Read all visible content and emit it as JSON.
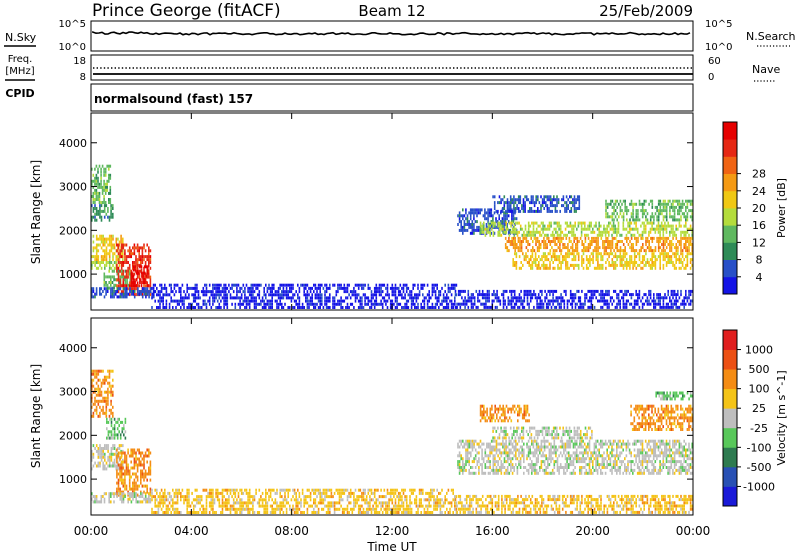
{
  "header": {
    "station": "Prince George (fitACF)",
    "beam": "Beam 12",
    "date": "25/Feb/2009"
  },
  "nsky_panel": {
    "left_label": "N.Sky",
    "left_ticks": [
      "10^5",
      "10^0"
    ],
    "right_label": "N.Search",
    "right_ticks": [
      "10^5",
      "10^0"
    ]
  },
  "freq_panel": {
    "label_line1": "Freq.",
    "label_line2": "[MHz]",
    "left_ticks": [
      "18",
      "8"
    ],
    "right_ticks": [
      "60",
      "0"
    ],
    "right_label": "Nave",
    "cpid_label": "CPID",
    "cpid_text": "normalsound (fast) 157"
  },
  "colors": {
    "power": [
      "#1414e6",
      "#2850c8",
      "#2e8b57",
      "#5fb85f",
      "#b4dc3c",
      "#f0c814",
      "#f59a14",
      "#f06414",
      "#e62814",
      "#e60000"
    ],
    "velocity": [
      "#1a1ad8",
      "#2850b4",
      "#2e7b50",
      "#58c85a",
      "#bebebe",
      "#f4c418",
      "#f48c14",
      "#ec5014",
      "#e01e1e"
    ],
    "ground_scatter": "#b4b4b4"
  },
  "chart_data": [
    {
      "type": "heatmap",
      "title": "",
      "xlabel": "Time UT",
      "ylabel": "Slant Range [km]",
      "x_ticks": [
        "00:00",
        "04:00",
        "08:00",
        "12:00",
        "16:00",
        "20:00",
        "00:00"
      ],
      "y_ticks": [
        "1000",
        "2000",
        "3000",
        "4000"
      ],
      "xlim": [
        0,
        24
      ],
      "ylim": [
        180,
        4680
      ],
      "colorbar": {
        "label": "Power [dB]",
        "ticks": [
          "4",
          "8",
          "12",
          "16",
          "20",
          "24",
          "28"
        ]
      },
      "regions": [
        {
          "t0": 0.0,
          "t1": 0.8,
          "r0": 2600,
          "r1": 3500,
          "level": 3
        },
        {
          "t0": 0.0,
          "t1": 0.9,
          "r0": 2200,
          "r1": 2600,
          "level": 2
        },
        {
          "t0": 0.0,
          "t1": 1.3,
          "r0": 1300,
          "r1": 1900,
          "level": 5
        },
        {
          "t0": 0.0,
          "t1": 1.3,
          "r0": 1100,
          "r1": 1300,
          "level": 4
        },
        {
          "t0": 0.5,
          "t1": 1.6,
          "r0": 650,
          "r1": 1100,
          "level": 3
        },
        {
          "t0": 1.0,
          "t1": 2.4,
          "r0": 500,
          "r1": 1700,
          "level": 8
        },
        {
          "t0": 1.6,
          "t1": 2.3,
          "r0": 700,
          "r1": 1200,
          "level": 9
        },
        {
          "t0": 0.0,
          "t1": 2.6,
          "r0": 450,
          "r1": 700,
          "level": 1
        },
        {
          "t0": 2.4,
          "t1": 14.6,
          "r0": 200,
          "r1": 780,
          "level": 0
        },
        {
          "t0": 14.5,
          "t1": 24.0,
          "r0": 200,
          "r1": 640,
          "level": 0
        },
        {
          "t0": 14.6,
          "t1": 17.0,
          "r0": 1900,
          "r1": 2500,
          "level": 1
        },
        {
          "t0": 16.0,
          "t1": 19.5,
          "r0": 2400,
          "r1": 2800,
          "level": 1
        },
        {
          "t0": 15.5,
          "t1": 24.0,
          "r0": 1850,
          "r1": 2200,
          "level": 4
        },
        {
          "t0": 16.5,
          "t1": 24.0,
          "r0": 1500,
          "r1": 1850,
          "level": 6
        },
        {
          "t0": 16.8,
          "t1": 24.0,
          "r0": 1100,
          "r1": 1500,
          "level": 5
        },
        {
          "t0": 20.5,
          "t1": 24.0,
          "r0": 2200,
          "r1": 2700,
          "level": 3
        }
      ]
    },
    {
      "type": "heatmap",
      "title": "",
      "xlabel": "Time UT",
      "ylabel": "Slant Range [km]",
      "x_ticks": [
        "00:00",
        "04:00",
        "08:00",
        "12:00",
        "16:00",
        "20:00",
        "00:00"
      ],
      "y_ticks": [
        "1000",
        "2000",
        "3000",
        "4000"
      ],
      "xlim": [
        0,
        24
      ],
      "ylim": [
        180,
        4680
      ],
      "colorbar": {
        "label": "Velocity [m s^-1]",
        "ticks": [
          "1000",
          "500",
          "100",
          "25",
          "-25",
          "-100",
          "-500",
          "-1000"
        ]
      },
      "regions": [
        {
          "t0": 0.0,
          "t1": 0.9,
          "r0": 2400,
          "r1": 3500,
          "level": 6
        },
        {
          "t0": 0.0,
          "t1": 1.3,
          "r0": 1200,
          "r1": 1800,
          "level": 4
        },
        {
          "t0": 1.0,
          "t1": 2.4,
          "r0": 600,
          "r1": 1700,
          "level": 6
        },
        {
          "t0": 0.6,
          "t1": 1.4,
          "r0": 1900,
          "r1": 2400,
          "level": 3
        },
        {
          "t0": 0.0,
          "t1": 2.4,
          "r0": 450,
          "r1": 700,
          "level": 4
        },
        {
          "t0": 2.4,
          "t1": 14.6,
          "r0": 200,
          "r1": 780,
          "level": 5
        },
        {
          "t0": 14.5,
          "t1": 24.0,
          "r0": 200,
          "r1": 640,
          "level": 5
        },
        {
          "t0": 14.6,
          "t1": 24.0,
          "r0": 1100,
          "r1": 1900,
          "level": 4
        },
        {
          "t0": 16.0,
          "t1": 20.0,
          "r0": 1900,
          "r1": 2200,
          "level": 4
        },
        {
          "t0": 15.5,
          "t1": 17.5,
          "r0": 2300,
          "r1": 2700,
          "level": 6
        },
        {
          "t0": 21.5,
          "t1": 24.0,
          "r0": 2100,
          "r1": 2700,
          "level": 6
        },
        {
          "t0": 22.5,
          "t1": 24.0,
          "r0": 2800,
          "r1": 3000,
          "level": 3
        }
      ]
    }
  ]
}
